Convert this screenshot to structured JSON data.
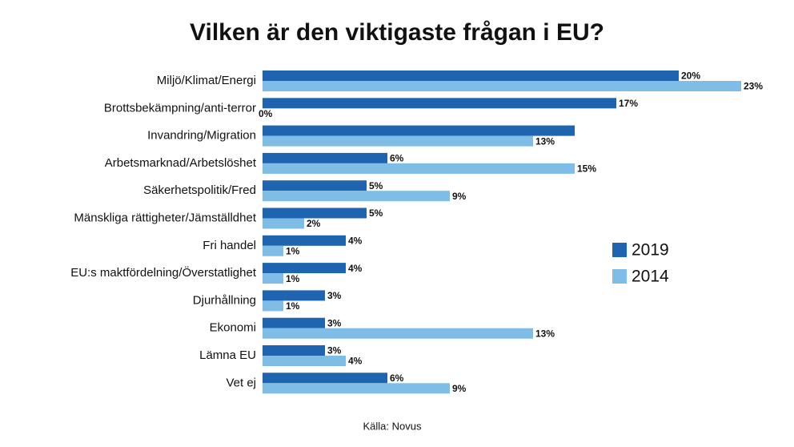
{
  "chart_data": {
    "type": "hbar",
    "title": "Vilken är den viktigaste frågan i EU?",
    "categories": [
      "Miljö/Klimat/Energi",
      "Brottsbekämpning/anti-terror",
      "Invandring/Migration",
      "Arbetsmarknad/Arbetslöshet",
      "Säkerhetspolitik/Fred",
      "Mänskliga rättigheter/Jämställdhet",
      "Fri handel",
      "EU:s maktfördelning/Överstatlighet",
      "Djurhållning",
      "Ekonomi",
      "Lämna EU",
      "Vet ej"
    ],
    "series": [
      {
        "name": "2019",
        "color": "#1f64ae",
        "values": [
          20,
          17,
          15,
          6,
          5,
          5,
          4,
          4,
          3,
          3,
          3,
          6
        ],
        "value_labels": [
          "20%",
          "17%",
          null,
          "6%",
          "5%",
          "5%",
          "4%",
          "4%",
          "3%",
          "3%",
          "3%",
          "6%"
        ]
      },
      {
        "name": "2014",
        "color": "#7fbde6",
        "values": [
          23,
          0,
          13,
          15,
          9,
          2,
          1,
          1,
          1,
          13,
          4,
          9
        ],
        "value_labels": [
          "23%",
          "0%",
          "13%",
          "15%",
          "9%",
          "2%",
          "1%",
          "1%",
          "1%",
          "13%",
          "4%",
          "9%"
        ]
      }
    ],
    "source": "Källa: Novus"
  }
}
